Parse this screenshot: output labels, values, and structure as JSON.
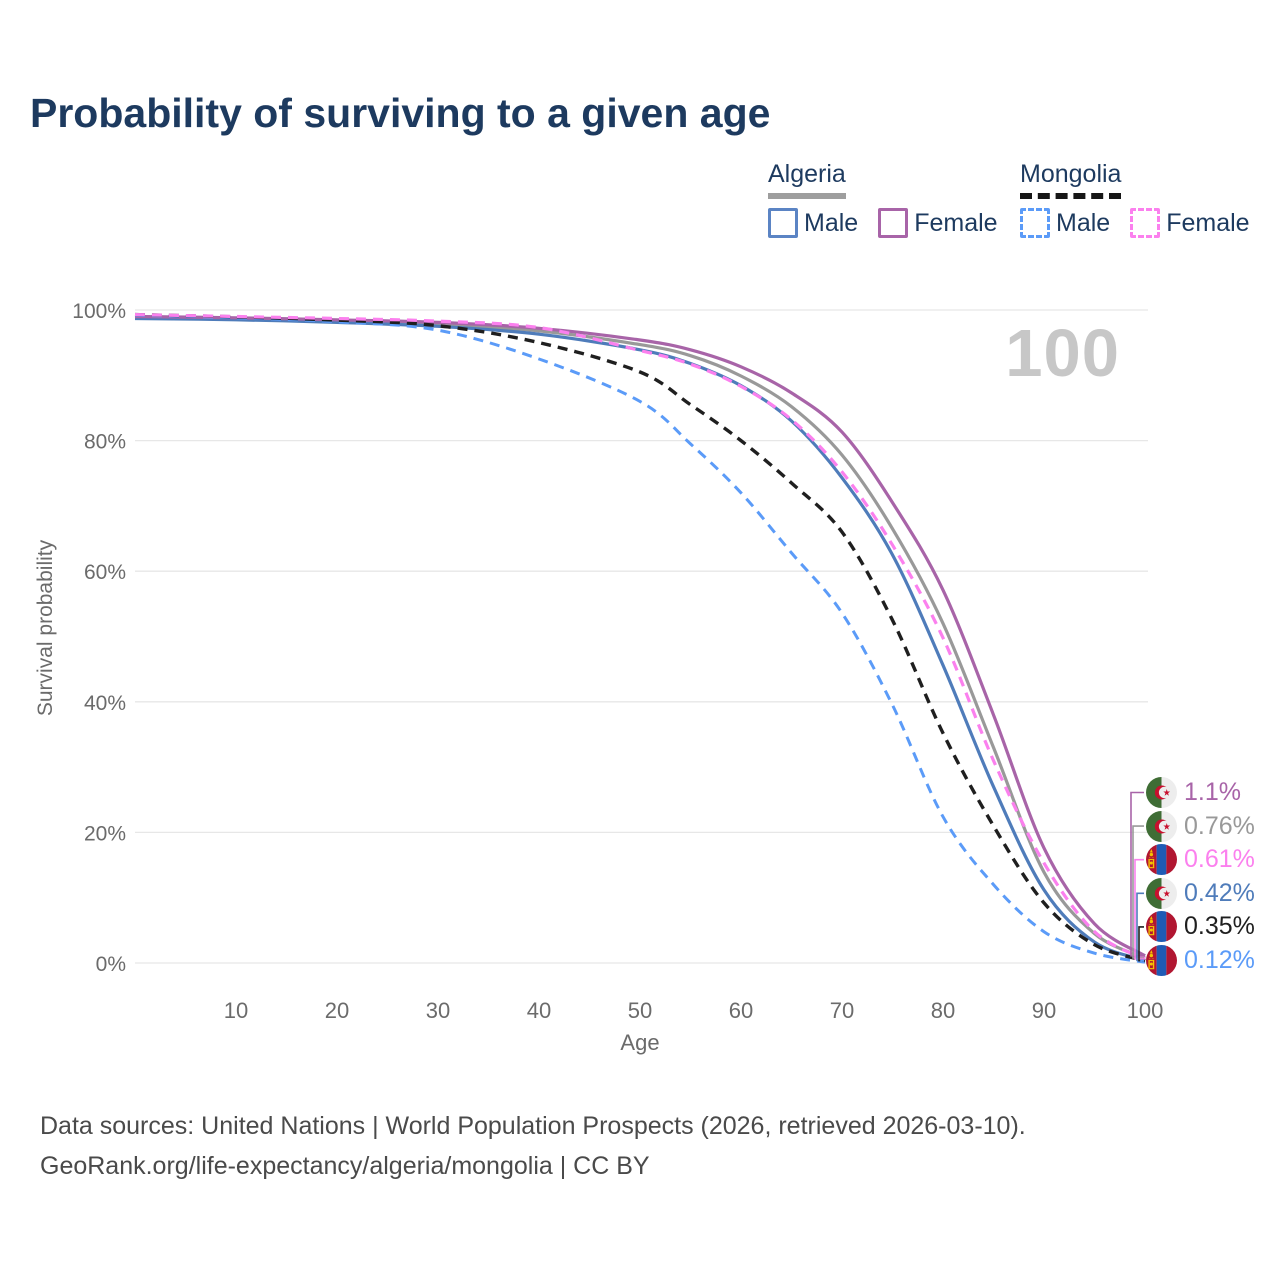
{
  "title": "Probability of surviving to a given age",
  "legend": {
    "groups": [
      {
        "country": "Algeria",
        "underline_style": "solid",
        "underline_color": "#9e9e9e",
        "items": [
          {
            "label": "Male",
            "color": "#5b84c4"
          },
          {
            "label": "Female",
            "color": "#a864a8"
          }
        ]
      },
      {
        "country": "Mongolia",
        "underline_style": "dashed",
        "underline_color": "#161616",
        "items": [
          {
            "label": "Male",
            "color": "#5b9bf8"
          },
          {
            "label": "Female",
            "color": "#fb80ee"
          }
        ]
      }
    ]
  },
  "watermark": "100",
  "chart_data": {
    "type": "line",
    "title": "Probability of surviving to a given age",
    "xlabel": "Age",
    "ylabel": "Survival probability",
    "xlim": [
      0,
      100
    ],
    "ylim": [
      0,
      100
    ],
    "x_ticks": [
      10,
      20,
      30,
      40,
      50,
      60,
      70,
      80,
      90,
      100
    ],
    "y_ticks": [
      0,
      20,
      40,
      60,
      80,
      100
    ],
    "y_tick_suffix": "%",
    "grid": "horizontal",
    "legend_position": "top-right",
    "x": [
      0,
      10,
      20,
      30,
      40,
      50,
      55,
      60,
      65,
      70,
      75,
      80,
      85,
      90,
      95,
      100
    ],
    "series": [
      {
        "name": "Algeria Both sexes",
        "country": "Algeria",
        "color": "#999999",
        "style": "solid",
        "width": 3.2,
        "values": [
          98.9,
          98.7,
          98.3,
          97.8,
          96.8,
          94.7,
          93.0,
          89.9,
          85.2,
          77.8,
          66.5,
          52.0,
          33.0,
          13.9,
          4.5,
          0.76
        ]
      },
      {
        "name": "Algeria Male",
        "country": "Algeria",
        "color": "#4f7cba",
        "style": "solid",
        "width": 3.2,
        "values": [
          98.7,
          98.5,
          98.1,
          97.5,
          96.3,
          93.9,
          91.8,
          88.4,
          83.0,
          74.3,
          62.5,
          45.6,
          27.0,
          11.2,
          3.2,
          0.42
        ]
      },
      {
        "name": "Algeria Female",
        "country": "Algeria",
        "color": "#a864a8",
        "style": "solid",
        "width": 3.2,
        "values": [
          99.0,
          98.8,
          98.5,
          98.1,
          97.2,
          95.4,
          93.9,
          91.3,
          87.3,
          81.3,
          70.5,
          57.1,
          38.0,
          17.6,
          6.0,
          1.1
        ]
      },
      {
        "name": "Mongolia Male",
        "country": "Mongolia",
        "color": "#5b9bf8",
        "style": "dashed",
        "width": 3.0,
        "values": [
          99.2,
          98.8,
          98.2,
          96.9,
          92.5,
          86.0,
          79.5,
          72.0,
          62.8,
          53.6,
          39.5,
          22.4,
          12.0,
          4.8,
          1.5,
          0.12
        ]
      },
      {
        "name": "Mongolia Both sexes",
        "country": "Mongolia",
        "color": "#1f1f1f",
        "style": "dashed",
        "width": 3.4,
        "values": [
          99.3,
          98.95,
          98.45,
          97.6,
          95.0,
          90.5,
          85.5,
          80.0,
          73.5,
          66.0,
          52.5,
          35.2,
          21.0,
          9.2,
          2.8,
          0.35
        ]
      },
      {
        "name": "Mongolia Female",
        "country": "Mongolia",
        "color": "#fb80ee",
        "style": "dashed",
        "width": 3.2,
        "values": [
          99.3,
          99.0,
          98.7,
          98.3,
          97.3,
          93.8,
          91.7,
          88.3,
          83.2,
          75.2,
          64.0,
          49.8,
          31.0,
          15.3,
          4.8,
          0.61
        ]
      }
    ],
    "endpoints": [
      {
        "flag": "algeria",
        "series": "Algeria Female",
        "value": "1.1%",
        "color": "#a864a8"
      },
      {
        "flag": "algeria",
        "series": "Algeria Both sexes",
        "value": "0.76%",
        "color": "#999999"
      },
      {
        "flag": "mongolia",
        "series": "Mongolia Female",
        "value": "0.61%",
        "color": "#fb80ee"
      },
      {
        "flag": "algeria",
        "series": "Algeria Male",
        "value": "0.42%",
        "color": "#4f7cba"
      },
      {
        "flag": "mongolia",
        "series": "Mongolia Both sexes",
        "value": "0.35%",
        "color": "#1f1f1f"
      },
      {
        "flag": "mongolia",
        "series": "Mongolia Male",
        "value": "0.12%",
        "color": "#5b9bf8"
      }
    ]
  },
  "footer": {
    "line1": "Data sources: United Nations | World Population Prospects (2026, retrieved 2026-03-10).",
    "line2": "GeoRank.org/life-expectancy/algeria/mongolia | CC BY"
  }
}
